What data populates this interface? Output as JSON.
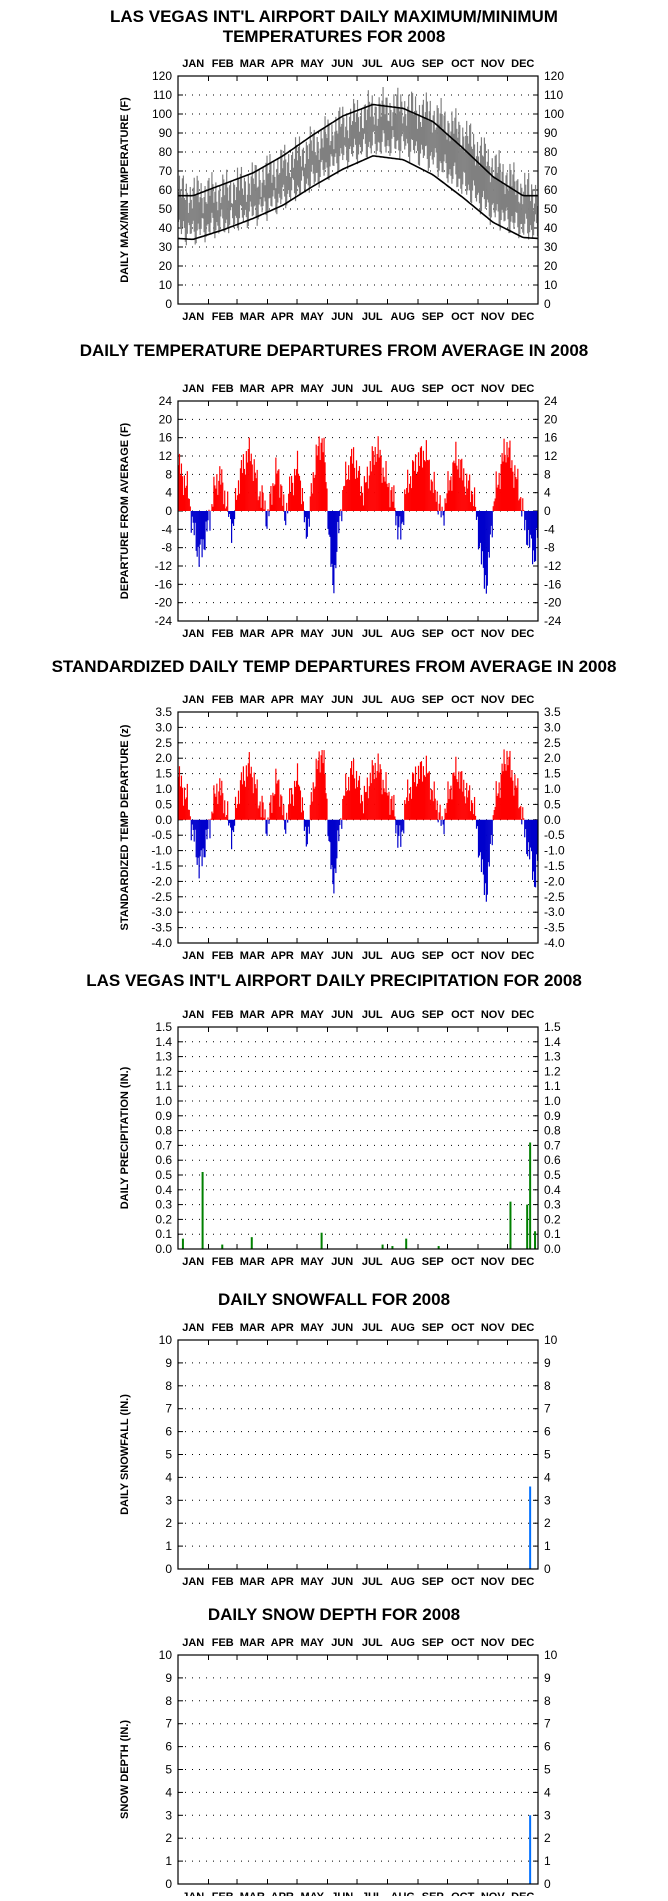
{
  "months": [
    "JAN",
    "FEB",
    "MAR",
    "APR",
    "MAY",
    "JUN",
    "JUL",
    "AUG",
    "SEP",
    "OCT",
    "NOV",
    "DEC"
  ],
  "colors": {
    "range": "#808080",
    "normal": "#000000",
    "positive": "#ff0000",
    "negative": "#0000cc",
    "precip": "#008000",
    "snow": "#0070ff"
  },
  "chart_data": [
    {
      "type": "line",
      "title": "LAS VEGAS INT'L AIRPORT DAILY MAXIMUM/MINIMUM TEMPERATURES FOR 2008",
      "title_lines": [
        "LAS VEGAS INT'L AIRPORT DAILY MAXIMUM/MINIMUM",
        "TEMPERATURES FOR 2008"
      ],
      "ylabel": "DAILY MAX/MIN TEMPERATURE (F)",
      "ylim": [
        0,
        120
      ],
      "yticks": [
        "0",
        "10",
        "20",
        "30",
        "40",
        "50",
        "60",
        "70",
        "80",
        "90",
        "100",
        "110",
        "120"
      ],
      "series": [
        {
          "name": "",
          "kind": "observed-range",
          "values_max": [
            58,
            60,
            65,
            74,
            84,
            96,
            103,
            104,
            100,
            90,
            73,
            60
          ],
          "values_min": [
            38,
            42,
            48,
            56,
            66,
            78,
            84,
            84,
            76,
            63,
            48,
            40
          ]
        },
        {
          "name": "",
          "kind": "normal-max",
          "values": [
            57,
            63,
            69,
            78,
            89,
            99,
            105,
            103,
            96,
            82,
            67,
            57
          ]
        },
        {
          "name": "",
          "kind": "normal-min",
          "values": [
            34,
            39,
            45,
            52,
            62,
            71,
            78,
            76,
            68,
            56,
            43,
            35
          ]
        }
      ]
    },
    {
      "type": "bar",
      "title": "DAILY TEMPERATURE DEPARTURES FROM AVERAGE IN 2008",
      "ylabel": "DEPARTURE FROM AVERAGE (F)",
      "ylim": [
        -24,
        24
      ],
      "yticks": [
        "-24",
        "-20",
        "-16",
        "-12",
        "-8",
        "-4",
        "0",
        "4",
        "8",
        "12",
        "16",
        "20",
        "24"
      ],
      "values": [
        10,
        8,
        6,
        4,
        -3,
        -6,
        -10,
        -8,
        -5,
        -2,
        3,
        6,
        8,
        5,
        2,
        -2,
        -4,
        4,
        8,
        10,
        12,
        13,
        9,
        6,
        3,
        2,
        -3,
        4,
        7,
        9,
        5,
        -2,
        3,
        6,
        8,
        10,
        4,
        -4,
        -3,
        6,
        11,
        14,
        16,
        8,
        -6,
        -17,
        -10,
        -2,
        4,
        8,
        10,
        12,
        9,
        6,
        4,
        7,
        10,
        12,
        14,
        11,
        8,
        6,
        4,
        2,
        -4,
        -5,
        3,
        6,
        8,
        10,
        11,
        12,
        13,
        10,
        6,
        4,
        2,
        -2,
        3,
        6,
        9,
        12,
        10,
        8,
        6,
        5,
        4,
        -2,
        -8,
        -14,
        -16,
        -6,
        2,
        6,
        9,
        13,
        14,
        11,
        8,
        6,
        2,
        -3,
        -6,
        -8,
        -10,
        -4
      ]
    },
    {
      "type": "bar",
      "title": "STANDARDIZED DAILY TEMP DEPARTURES FROM AVERAGE IN 2008",
      "ylabel": "STANDARDIZED TEMP DEPARTURE (z)",
      "ylim": [
        -4.0,
        3.5
      ],
      "yticks": [
        "-4.0",
        "-3.5",
        "-3.0",
        "-2.5",
        "-2.0",
        "-1.5",
        "-1.0",
        "-0.5",
        "0.0",
        "0.5",
        "1.0",
        "1.5",
        "2.0",
        "2.5",
        "3.0",
        "3.5"
      ],
      "values": [
        1.4,
        1.1,
        0.8,
        0.5,
        -0.4,
        -0.8,
        -1.6,
        -1.2,
        -0.7,
        -0.3,
        0.5,
        0.9,
        1.1,
        0.7,
        0.3,
        -0.3,
        -0.5,
        0.6,
        1.1,
        1.4,
        1.6,
        1.8,
        1.2,
        0.9,
        0.4,
        0.3,
        -0.4,
        0.6,
        1.0,
        1.3,
        0.7,
        -0.3,
        0.4,
        0.8,
        1.1,
        1.4,
        0.6,
        -0.6,
        -0.4,
        0.9,
        1.5,
        1.9,
        2.3,
        1.1,
        -0.8,
        -2.2,
        -1.4,
        -0.3,
        0.6,
        1.1,
        1.4,
        1.7,
        1.3,
        0.9,
        0.6,
        1.0,
        1.4,
        1.6,
        1.8,
        1.5,
        1.1,
        0.9,
        0.6,
        0.3,
        -0.6,
        -0.7,
        0.4,
        0.9,
        1.1,
        1.4,
        1.5,
        1.6,
        1.7,
        1.4,
        0.9,
        0.6,
        0.3,
        -0.3,
        0.4,
        0.9,
        1.3,
        1.6,
        1.4,
        1.1,
        0.9,
        0.7,
        0.6,
        -0.3,
        -1.2,
        -2.0,
        -2.4,
        -0.9,
        0.3,
        0.9,
        1.3,
        1.9,
        2.1,
        1.6,
        1.2,
        0.9,
        0.3,
        -0.4,
        -1.0,
        -1.3,
        -2.1,
        -1.0
      ]
    },
    {
      "type": "bar",
      "title": "LAS VEGAS INT'L AIRPORT DAILY PRECIPITATION FOR 2008",
      "ylabel": "DAILY PRECIPITATION (IN.)",
      "ylim": [
        0,
        1.5
      ],
      "yticks": [
        "0.0",
        "0.1",
        "0.2",
        "0.3",
        "0.4",
        "0.5",
        "0.6",
        "0.7",
        "0.8",
        "0.9",
        "1.0",
        "1.1",
        "1.2",
        "1.3",
        "1.4",
        "1.5"
      ],
      "events": [
        {
          "day": 5,
          "value": 0.07
        },
        {
          "day": 25,
          "value": 0.52
        },
        {
          "day": 45,
          "value": 0.03
        },
        {
          "day": 75,
          "value": 0.08
        },
        {
          "day": 146,
          "value": 0.11
        },
        {
          "day": 208,
          "value": 0.03
        },
        {
          "day": 218,
          "value": 0.02
        },
        {
          "day": 232,
          "value": 0.07
        },
        {
          "day": 265,
          "value": 0.02
        },
        {
          "day": 338,
          "value": 0.32
        },
        {
          "day": 355,
          "value": 0.3
        },
        {
          "day": 358,
          "value": 0.72
        },
        {
          "day": 363,
          "value": 0.12
        }
      ]
    },
    {
      "type": "bar",
      "title": "DAILY SNOWFALL FOR 2008",
      "ylabel": "DAILY SNOWFALL (IN.)",
      "ylim": [
        0,
        10
      ],
      "yticks": [
        "0",
        "1",
        "2",
        "3",
        "4",
        "5",
        "6",
        "7",
        "8",
        "9",
        "10"
      ],
      "events": [
        {
          "day": 358,
          "value": 3.6
        }
      ]
    },
    {
      "type": "bar",
      "title": "DAILY SNOW DEPTH FOR 2008",
      "ylabel": "SNOW DEPTH (IN.)",
      "ylim": [
        0,
        10
      ],
      "yticks": [
        "0",
        "1",
        "2",
        "3",
        "4",
        "5",
        "6",
        "7",
        "8",
        "9",
        "10"
      ],
      "events": [
        {
          "day": 358,
          "value": 3.0
        }
      ]
    }
  ]
}
